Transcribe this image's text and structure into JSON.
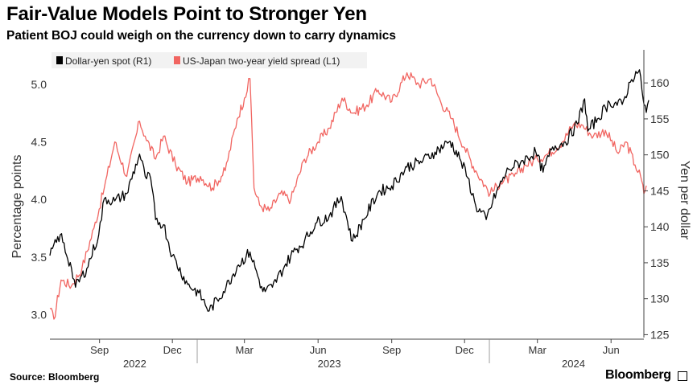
{
  "title": "Fair-Value Models Point to Stronger Yen",
  "subtitle": "Patient BOJ could weigh on the currency down to carry dynamics",
  "source": "Source: Bloomberg",
  "brand": "Bloomberg",
  "colors": {
    "spot": "#000000",
    "spread": "#f16561",
    "axis": "#333333",
    "grid": "#dddddd"
  },
  "chart_data": {
    "type": "line",
    "title": "Fair-Value Models Point to Stronger Yen",
    "legend_position": "top-left",
    "x_ticks": [
      {
        "label": "Sep",
        "date": "2022-09-01"
      },
      {
        "label": "Dec",
        "date": "2022-12-01"
      },
      {
        "label": "Mar",
        "date": "2023-03-01"
      },
      {
        "label": "Jun",
        "date": "2023-06-01"
      },
      {
        "label": "Sep",
        "date": "2023-09-01"
      },
      {
        "label": "Dec",
        "date": "2023-12-01"
      },
      {
        "label": "Mar",
        "date": "2024-03-01"
      },
      {
        "label": "Jun",
        "date": "2024-06-01"
      }
    ],
    "year_labels": [
      {
        "label": "2022",
        "date": "2022-10-15"
      },
      {
        "label": "2023",
        "date": "2023-06-15"
      },
      {
        "label": "2024",
        "date": "2024-04-15"
      }
    ],
    "x_range": [
      "2022-07-01",
      "2024-07-10"
    ],
    "y_left": {
      "label": "Percentage points",
      "range": [
        2.8,
        5.3
      ],
      "ticks": [
        3.0,
        3.5,
        4.0,
        4.5,
        5.0
      ],
      "tick_labels": [
        "3.0",
        "3.5",
        "4.0",
        "4.5",
        "5.0"
      ]
    },
    "y_right": {
      "label": "Yen per dollar",
      "range": [
        124.6,
        164.6
      ],
      "ticks": [
        125,
        130,
        135,
        140,
        145,
        150,
        155,
        160
      ],
      "tick_labels": [
        "125",
        "130",
        "135",
        "140",
        "145",
        "150",
        "155",
        "160"
      ]
    },
    "series": [
      {
        "name": "Dollar-yen spot (R1)",
        "axis": "right",
        "points": [
          [
            "2022-07-01",
            136.0
          ],
          [
            "2022-07-14",
            138.9
          ],
          [
            "2022-07-28",
            134.2
          ],
          [
            "2022-08-02",
            131.6
          ],
          [
            "2022-08-16",
            134.2
          ],
          [
            "2022-08-31",
            138.9
          ],
          [
            "2022-09-07",
            143.9
          ],
          [
            "2022-09-20",
            143.6
          ],
          [
            "2022-10-05",
            144.6
          ],
          [
            "2022-10-21",
            150.1
          ],
          [
            "2022-10-28",
            147.0
          ],
          [
            "2022-11-04",
            146.7
          ],
          [
            "2022-11-10",
            141.0
          ],
          [
            "2022-11-20",
            140.3
          ],
          [
            "2022-12-01",
            136.0
          ],
          [
            "2022-12-20",
            132.0
          ],
          [
            "2023-01-03",
            130.8
          ],
          [
            "2023-01-16",
            128.3
          ],
          [
            "2023-02-06",
            131.6
          ],
          [
            "2023-02-20",
            134.5
          ],
          [
            "2023-03-08",
            136.5
          ],
          [
            "2023-03-24",
            131.0
          ],
          [
            "2023-04-05",
            131.6
          ],
          [
            "2023-04-20",
            134.5
          ],
          [
            "2023-05-01",
            136.5
          ],
          [
            "2023-05-15",
            138.0
          ],
          [
            "2023-05-29",
            140.5
          ],
          [
            "2023-06-15",
            141.5
          ],
          [
            "2023-06-30",
            144.2
          ],
          [
            "2023-07-14",
            138.0
          ],
          [
            "2023-07-28",
            141.0
          ],
          [
            "2023-08-15",
            144.8
          ],
          [
            "2023-09-01",
            145.7
          ],
          [
            "2023-09-20",
            148.3
          ],
          [
            "2023-10-10",
            149.2
          ],
          [
            "2023-10-25",
            150.4
          ],
          [
            "2023-11-13",
            151.9
          ],
          [
            "2023-11-25",
            149.5
          ],
          [
            "2023-12-05",
            146.8
          ],
          [
            "2023-12-15",
            142.9
          ],
          [
            "2023-12-28",
            141.0
          ],
          [
            "2024-01-10",
            144.9
          ],
          [
            "2024-01-25",
            148.0
          ],
          [
            "2024-02-12",
            149.2
          ],
          [
            "2024-02-28",
            150.4
          ],
          [
            "2024-03-08",
            147.6
          ],
          [
            "2024-03-20",
            151.1
          ],
          [
            "2024-04-05",
            151.8
          ],
          [
            "2024-04-20",
            154.3
          ],
          [
            "2024-04-29",
            157.8
          ],
          [
            "2024-05-03",
            153.3
          ],
          [
            "2024-05-15",
            155.0
          ],
          [
            "2024-05-30",
            157.3
          ],
          [
            "2024-06-15",
            157.0
          ],
          [
            "2024-06-25",
            160.1
          ],
          [
            "2024-07-02",
            161.6
          ],
          [
            "2024-07-08",
            160.9
          ],
          [
            "2024-07-11",
            157.8
          ],
          [
            "2024-07-15",
            155.9
          ],
          [
            "2024-07-18",
            157.6
          ]
        ]
      },
      {
        "name": "US-Japan two-year yield spread (L1)",
        "axis": "left",
        "points": [
          [
            "2022-07-01",
            3.05
          ],
          [
            "2022-07-06",
            2.96
          ],
          [
            "2022-07-15",
            3.3
          ],
          [
            "2022-07-28",
            3.25
          ],
          [
            "2022-08-10",
            3.4
          ],
          [
            "2022-08-25",
            3.75
          ],
          [
            "2022-09-07",
            4.1
          ],
          [
            "2022-09-20",
            4.5
          ],
          [
            "2022-10-05",
            4.2
          ],
          [
            "2022-10-21",
            4.68
          ],
          [
            "2022-10-28",
            4.55
          ],
          [
            "2022-11-10",
            4.35
          ],
          [
            "2022-11-20",
            4.55
          ],
          [
            "2022-12-05",
            4.3
          ],
          [
            "2022-12-20",
            4.15
          ],
          [
            "2023-01-05",
            4.2
          ],
          [
            "2023-01-20",
            4.1
          ],
          [
            "2023-02-05",
            4.25
          ],
          [
            "2023-02-20",
            4.7
          ],
          [
            "2023-03-01",
            4.88
          ],
          [
            "2023-03-08",
            5.05
          ],
          [
            "2023-03-10",
            4.7
          ],
          [
            "2023-03-13",
            4.1
          ],
          [
            "2023-03-20",
            3.95
          ],
          [
            "2023-04-01",
            3.9
          ],
          [
            "2023-04-15",
            4.05
          ],
          [
            "2023-04-28",
            4.0
          ],
          [
            "2023-05-15",
            4.35
          ],
          [
            "2023-06-01",
            4.5
          ],
          [
            "2023-06-15",
            4.62
          ],
          [
            "2023-07-01",
            4.88
          ],
          [
            "2023-07-15",
            4.75
          ],
          [
            "2023-08-01",
            4.82
          ],
          [
            "2023-08-15",
            4.95
          ],
          [
            "2023-09-01",
            4.85
          ],
          [
            "2023-09-20",
            5.1
          ],
          [
            "2023-10-05",
            5.0
          ],
          [
            "2023-10-20",
            5.05
          ],
          [
            "2023-11-01",
            4.85
          ],
          [
            "2023-11-15",
            4.7
          ],
          [
            "2023-12-01",
            4.45
          ],
          [
            "2023-12-15",
            4.25
          ],
          [
            "2024-01-02",
            4.05
          ],
          [
            "2024-01-15",
            4.15
          ],
          [
            "2024-02-01",
            4.2
          ],
          [
            "2024-02-15",
            4.3
          ],
          [
            "2024-03-01",
            4.35
          ],
          [
            "2024-03-15",
            4.4
          ],
          [
            "2024-04-01",
            4.5
          ],
          [
            "2024-04-15",
            4.65
          ],
          [
            "2024-04-25",
            4.65
          ],
          [
            "2024-05-10",
            4.55
          ],
          [
            "2024-05-25",
            4.6
          ],
          [
            "2024-06-10",
            4.4
          ],
          [
            "2024-06-20",
            4.5
          ],
          [
            "2024-07-01",
            4.3
          ],
          [
            "2024-07-08",
            4.2
          ],
          [
            "2024-07-12",
            4.05
          ],
          [
            "2024-07-15",
            4.12
          ]
        ]
      }
    ]
  }
}
